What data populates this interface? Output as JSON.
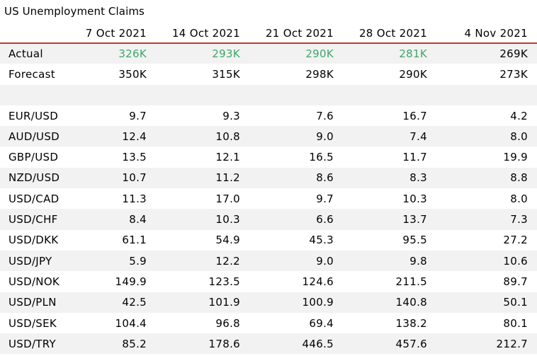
{
  "title": "US Unemployment Claims",
  "header": [
    "",
    "7 Oct 2021",
    "14 Oct 2021",
    "21 Oct 2021",
    "28 Oct 2021",
    "4 Nov 2021"
  ],
  "colors": {
    "highlight": "#3fa66a",
    "header_rule": "#c0392b",
    "stripe": "#f2f2f2"
  },
  "rows": [
    {
      "label": "Actual",
      "values": [
        "326K",
        "293K",
        "290K",
        "281K",
        "269K"
      ],
      "green": [
        true,
        true,
        true,
        true,
        false
      ]
    },
    {
      "label": "Forecast",
      "values": [
        "350K",
        "315K",
        "298K",
        "290K",
        "273K"
      ]
    },
    {
      "label": "",
      "values": [
        "",
        "",
        "",
        "",
        ""
      ]
    },
    {
      "label": "EUR/USD",
      "values": [
        "9.7",
        "9.3",
        "7.6",
        "16.7",
        "4.2"
      ]
    },
    {
      "label": "AUD/USD",
      "values": [
        "12.4",
        "10.8",
        "9.0",
        "7.4",
        "8.0"
      ]
    },
    {
      "label": "GBP/USD",
      "values": [
        "13.5",
        "12.1",
        "16.5",
        "11.7",
        "19.9"
      ]
    },
    {
      "label": "NZD/USD",
      "values": [
        "10.7",
        "11.2",
        "8.6",
        "8.3",
        "8.8"
      ]
    },
    {
      "label": "USD/CAD",
      "values": [
        "11.3",
        "17.0",
        "9.7",
        "10.3",
        "8.0"
      ]
    },
    {
      "label": "USD/CHF",
      "values": [
        "8.4",
        "10.3",
        "6.6",
        "13.7",
        "7.3"
      ]
    },
    {
      "label": "USD/DKK",
      "values": [
        "61.1",
        "54.9",
        "45.3",
        "95.5",
        "27.2"
      ]
    },
    {
      "label": "USD/JPY",
      "values": [
        "5.9",
        "12.2",
        "9.0",
        "9.8",
        "10.6"
      ]
    },
    {
      "label": "USD/NOK",
      "values": [
        "149.9",
        "123.5",
        "124.6",
        "211.5",
        "89.7"
      ]
    },
    {
      "label": "USD/PLN",
      "values": [
        "42.5",
        "101.9",
        "100.9",
        "140.8",
        "50.1"
      ]
    },
    {
      "label": "USD/SEK",
      "values": [
        "104.4",
        "96.8",
        "69.4",
        "138.2",
        "80.1"
      ]
    },
    {
      "label": "USD/TRY",
      "values": [
        "85.2",
        "178.6",
        "446.5",
        "457.6",
        "212.7"
      ]
    }
  ]
}
